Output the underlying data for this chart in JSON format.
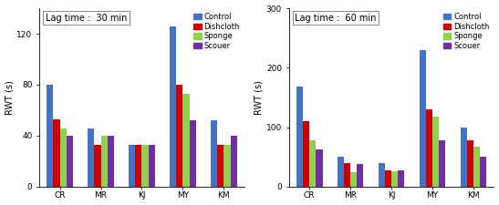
{
  "chart1": {
    "title": "Lag time :  30 min",
    "ylabel": "RWT (s)",
    "ylim": [
      0,
      140
    ],
    "yticks": [
      0,
      40,
      80,
      120
    ],
    "categories": [
      "CR",
      "MR",
      "KJ",
      "MY",
      "KM"
    ],
    "series": {
      "Control": [
        80,
        46,
        33,
        126,
        52
      ],
      "Dishcloth": [
        53,
        33,
        33,
        80,
        33
      ],
      "Sponge": [
        46,
        40,
        33,
        73,
        33
      ],
      "Scouer": [
        40,
        40,
        33,
        52,
        40
      ]
    }
  },
  "chart2": {
    "title": "Lag time :  60 min",
    "ylabel": "RWT (s)",
    "ylim": [
      0,
      300
    ],
    "yticks": [
      0,
      100,
      200,
      300
    ],
    "categories": [
      "CR",
      "MR",
      "KJ",
      "MY",
      "KM"
    ],
    "series": {
      "Control": [
        168,
        50,
        40,
        230,
        100
      ],
      "Dishcloth": [
        110,
        40,
        28,
        130,
        78
      ],
      "Sponge": [
        78,
        25,
        26,
        118,
        68
      ],
      "Scouer": [
        62,
        38,
        28,
        78,
        50
      ]
    }
  },
  "colors": {
    "Control": "#4472C4",
    "Dishcloth": "#CC0000",
    "Sponge": "#92D050",
    "Scouer": "#7030A0"
  },
  "legend_labels": [
    "Control",
    "Dishcloth",
    "Sponge",
    "Scouer"
  ],
  "bar_width": 0.16,
  "figsize": [
    5.47,
    2.25
  ],
  "dpi": 100
}
